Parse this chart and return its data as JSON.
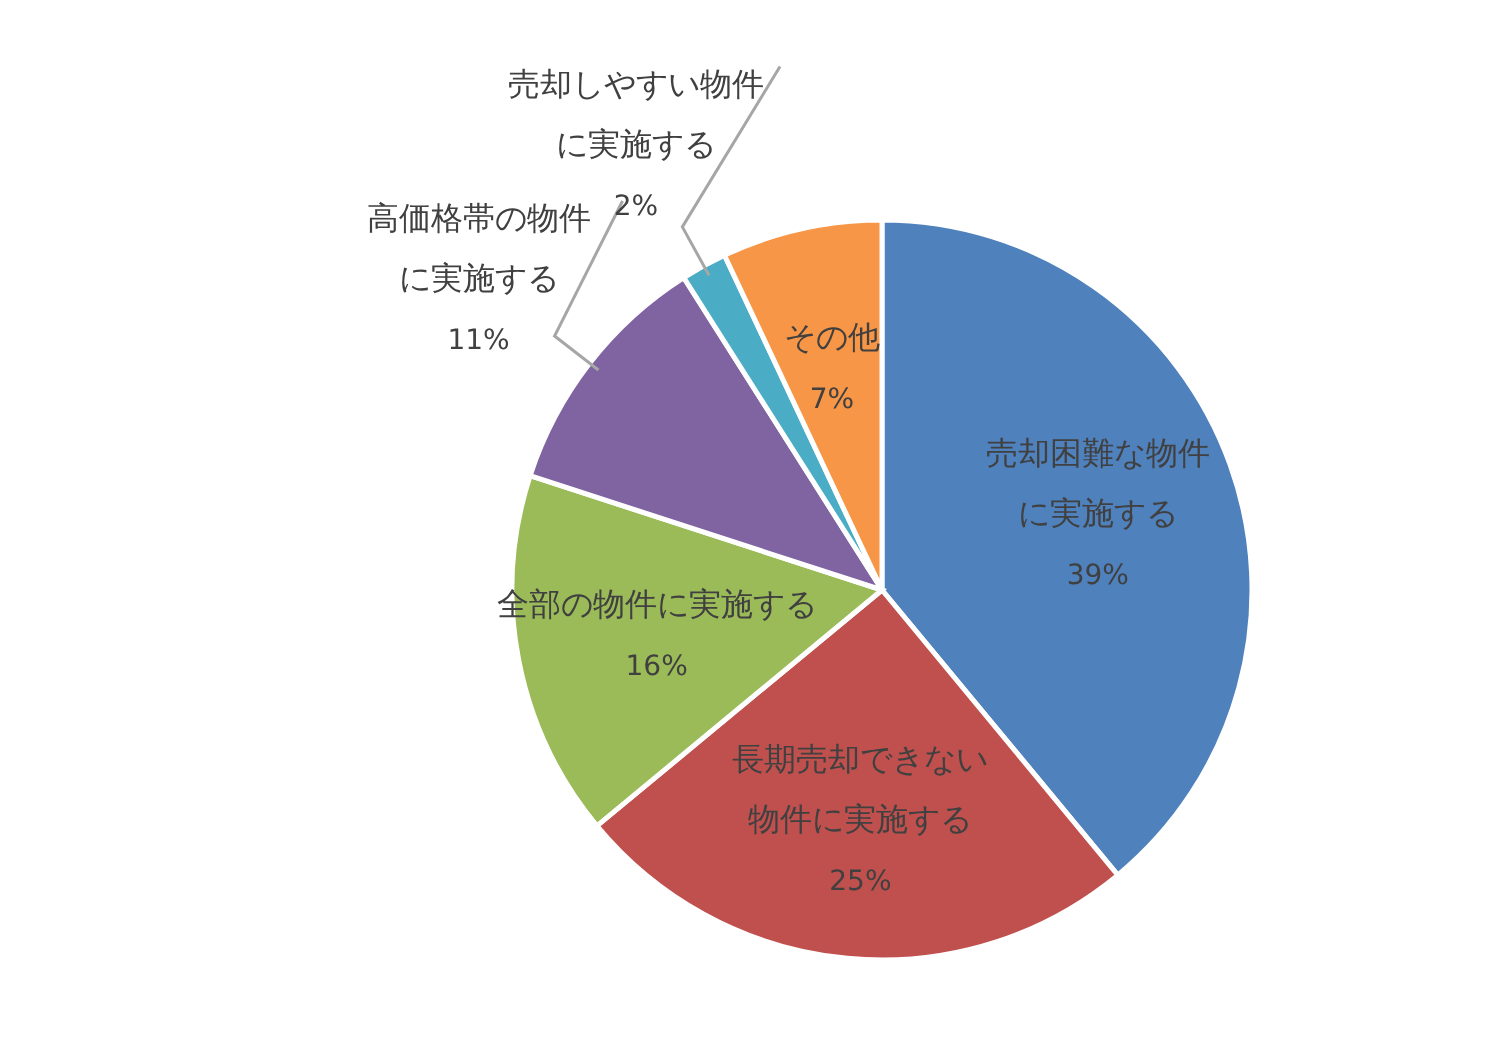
{
  "chart_data": {
    "type": "pie",
    "categories": [
      "売却困難な物件に実施する",
      "長期売却できない物件に実施する",
      "全部の物件に実施する",
      "高価格帯の物件に実施する",
      "売却しやすい物件に実施する",
      "その他"
    ],
    "values": [
      39,
      25,
      16,
      11,
      2,
      7
    ],
    "value_labels": [
      "39%",
      "25%",
      "16%",
      "11%",
      "2%",
      "7%"
    ],
    "colors": [
      "#4f81bd",
      "#c0504d",
      "#9bbb59",
      "#8064a2",
      "#4bacc6",
      "#f79646"
    ]
  }
}
